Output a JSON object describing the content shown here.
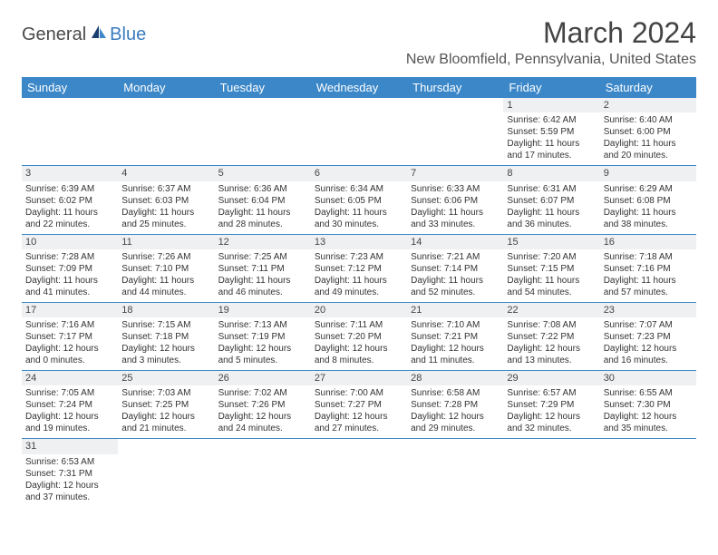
{
  "logo": {
    "general": "General",
    "blue": "Blue"
  },
  "title": {
    "month": "March 2024",
    "location": "New Bloomfield, Pennsylvania, United States"
  },
  "day_headers": [
    "Sunday",
    "Monday",
    "Tuesday",
    "Wednesday",
    "Thursday",
    "Friday",
    "Saturday"
  ],
  "colors": {
    "header_bg": "#3b87c8",
    "header_fg": "#ffffff",
    "daynum_bg": "#eef0f1",
    "border": "#3b87c8"
  },
  "weeks": [
    [
      null,
      null,
      null,
      null,
      null,
      {
        "n": "1",
        "sr": "Sunrise: 6:42 AM",
        "ss": "Sunset: 5:59 PM",
        "d1": "Daylight: 11 hours",
        "d2": "and 17 minutes."
      },
      {
        "n": "2",
        "sr": "Sunrise: 6:40 AM",
        "ss": "Sunset: 6:00 PM",
        "d1": "Daylight: 11 hours",
        "d2": "and 20 minutes."
      }
    ],
    [
      {
        "n": "3",
        "sr": "Sunrise: 6:39 AM",
        "ss": "Sunset: 6:02 PM",
        "d1": "Daylight: 11 hours",
        "d2": "and 22 minutes."
      },
      {
        "n": "4",
        "sr": "Sunrise: 6:37 AM",
        "ss": "Sunset: 6:03 PM",
        "d1": "Daylight: 11 hours",
        "d2": "and 25 minutes."
      },
      {
        "n": "5",
        "sr": "Sunrise: 6:36 AM",
        "ss": "Sunset: 6:04 PM",
        "d1": "Daylight: 11 hours",
        "d2": "and 28 minutes."
      },
      {
        "n": "6",
        "sr": "Sunrise: 6:34 AM",
        "ss": "Sunset: 6:05 PM",
        "d1": "Daylight: 11 hours",
        "d2": "and 30 minutes."
      },
      {
        "n": "7",
        "sr": "Sunrise: 6:33 AM",
        "ss": "Sunset: 6:06 PM",
        "d1": "Daylight: 11 hours",
        "d2": "and 33 minutes."
      },
      {
        "n": "8",
        "sr": "Sunrise: 6:31 AM",
        "ss": "Sunset: 6:07 PM",
        "d1": "Daylight: 11 hours",
        "d2": "and 36 minutes."
      },
      {
        "n": "9",
        "sr": "Sunrise: 6:29 AM",
        "ss": "Sunset: 6:08 PM",
        "d1": "Daylight: 11 hours",
        "d2": "and 38 minutes."
      }
    ],
    [
      {
        "n": "10",
        "sr": "Sunrise: 7:28 AM",
        "ss": "Sunset: 7:09 PM",
        "d1": "Daylight: 11 hours",
        "d2": "and 41 minutes."
      },
      {
        "n": "11",
        "sr": "Sunrise: 7:26 AM",
        "ss": "Sunset: 7:10 PM",
        "d1": "Daylight: 11 hours",
        "d2": "and 44 minutes."
      },
      {
        "n": "12",
        "sr": "Sunrise: 7:25 AM",
        "ss": "Sunset: 7:11 PM",
        "d1": "Daylight: 11 hours",
        "d2": "and 46 minutes."
      },
      {
        "n": "13",
        "sr": "Sunrise: 7:23 AM",
        "ss": "Sunset: 7:12 PM",
        "d1": "Daylight: 11 hours",
        "d2": "and 49 minutes."
      },
      {
        "n": "14",
        "sr": "Sunrise: 7:21 AM",
        "ss": "Sunset: 7:14 PM",
        "d1": "Daylight: 11 hours",
        "d2": "and 52 minutes."
      },
      {
        "n": "15",
        "sr": "Sunrise: 7:20 AM",
        "ss": "Sunset: 7:15 PM",
        "d1": "Daylight: 11 hours",
        "d2": "and 54 minutes."
      },
      {
        "n": "16",
        "sr": "Sunrise: 7:18 AM",
        "ss": "Sunset: 7:16 PM",
        "d1": "Daylight: 11 hours",
        "d2": "and 57 minutes."
      }
    ],
    [
      {
        "n": "17",
        "sr": "Sunrise: 7:16 AM",
        "ss": "Sunset: 7:17 PM",
        "d1": "Daylight: 12 hours",
        "d2": "and 0 minutes."
      },
      {
        "n": "18",
        "sr": "Sunrise: 7:15 AM",
        "ss": "Sunset: 7:18 PM",
        "d1": "Daylight: 12 hours",
        "d2": "and 3 minutes."
      },
      {
        "n": "19",
        "sr": "Sunrise: 7:13 AM",
        "ss": "Sunset: 7:19 PM",
        "d1": "Daylight: 12 hours",
        "d2": "and 5 minutes."
      },
      {
        "n": "20",
        "sr": "Sunrise: 7:11 AM",
        "ss": "Sunset: 7:20 PM",
        "d1": "Daylight: 12 hours",
        "d2": "and 8 minutes."
      },
      {
        "n": "21",
        "sr": "Sunrise: 7:10 AM",
        "ss": "Sunset: 7:21 PM",
        "d1": "Daylight: 12 hours",
        "d2": "and 11 minutes."
      },
      {
        "n": "22",
        "sr": "Sunrise: 7:08 AM",
        "ss": "Sunset: 7:22 PM",
        "d1": "Daylight: 12 hours",
        "d2": "and 13 minutes."
      },
      {
        "n": "23",
        "sr": "Sunrise: 7:07 AM",
        "ss": "Sunset: 7:23 PM",
        "d1": "Daylight: 12 hours",
        "d2": "and 16 minutes."
      }
    ],
    [
      {
        "n": "24",
        "sr": "Sunrise: 7:05 AM",
        "ss": "Sunset: 7:24 PM",
        "d1": "Daylight: 12 hours",
        "d2": "and 19 minutes."
      },
      {
        "n": "25",
        "sr": "Sunrise: 7:03 AM",
        "ss": "Sunset: 7:25 PM",
        "d1": "Daylight: 12 hours",
        "d2": "and 21 minutes."
      },
      {
        "n": "26",
        "sr": "Sunrise: 7:02 AM",
        "ss": "Sunset: 7:26 PM",
        "d1": "Daylight: 12 hours",
        "d2": "and 24 minutes."
      },
      {
        "n": "27",
        "sr": "Sunrise: 7:00 AM",
        "ss": "Sunset: 7:27 PM",
        "d1": "Daylight: 12 hours",
        "d2": "and 27 minutes."
      },
      {
        "n": "28",
        "sr": "Sunrise: 6:58 AM",
        "ss": "Sunset: 7:28 PM",
        "d1": "Daylight: 12 hours",
        "d2": "and 29 minutes."
      },
      {
        "n": "29",
        "sr": "Sunrise: 6:57 AM",
        "ss": "Sunset: 7:29 PM",
        "d1": "Daylight: 12 hours",
        "d2": "and 32 minutes."
      },
      {
        "n": "30",
        "sr": "Sunrise: 6:55 AM",
        "ss": "Sunset: 7:30 PM",
        "d1": "Daylight: 12 hours",
        "d2": "and 35 minutes."
      }
    ],
    [
      {
        "n": "31",
        "sr": "Sunrise: 6:53 AM",
        "ss": "Sunset: 7:31 PM",
        "d1": "Daylight: 12 hours",
        "d2": "and 37 minutes."
      },
      null,
      null,
      null,
      null,
      null,
      null
    ]
  ]
}
